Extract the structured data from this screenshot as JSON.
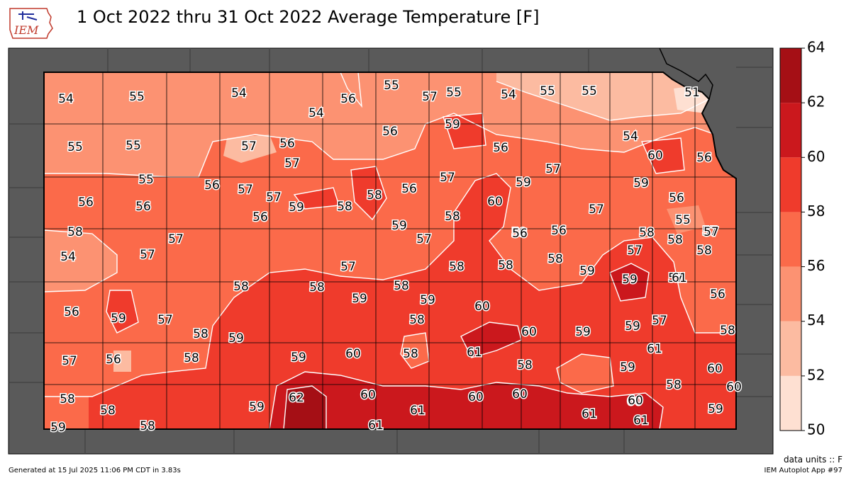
{
  "header": {
    "logo_text": "IEM",
    "title": "1 Oct 2022 thru 31 Oct 2022 Average Temperature [F]"
  },
  "legend": {
    "ticks": [
      "50",
      "52",
      "54",
      "56",
      "58",
      "60",
      "62",
      "64"
    ],
    "bins": [
      {
        "from": 50,
        "to": 52,
        "color": "#fee0d2"
      },
      {
        "from": 52,
        "to": 54,
        "color": "#fcbba1"
      },
      {
        "from": 54,
        "to": 56,
        "color": "#fc9272"
      },
      {
        "from": 56,
        "to": 58,
        "color": "#fb6a4a"
      },
      {
        "from": 58,
        "to": 60,
        "color": "#ef3b2c"
      },
      {
        "from": 60,
        "to": 62,
        "color": "#cb181d"
      },
      {
        "from": 62,
        "to": 64,
        "color": "#a50f15"
      }
    ]
  },
  "map": {
    "state": "Kansas",
    "outside_color": "#5a5a5a",
    "labels": [
      "54",
      "55",
      "54",
      "56",
      "55",
      "57",
      "55",
      "54",
      "54",
      "55",
      "55",
      "51",
      "55",
      "55",
      "57",
      "56",
      "56",
      "59",
      "56",
      "54",
      "60",
      "56",
      "57",
      "57",
      "59",
      "56",
      "57",
      "60",
      "55",
      "56",
      "56",
      "57",
      "57",
      "59",
      "58",
      "58",
      "59",
      "55",
      "57",
      "56",
      "56",
      "56",
      "57",
      "59",
      "58",
      "58",
      "57",
      "59",
      "56",
      "58",
      "58",
      "57",
      "57",
      "57",
      "58",
      "58",
      "57",
      "56",
      "58",
      "54",
      "57",
      "57",
      "58",
      "58",
      "58",
      "59",
      "61",
      "57",
      "56",
      "58",
      "58",
      "59",
      "59",
      "60",
      "59",
      "56",
      "59",
      "57",
      "58",
      "59",
      "58",
      "60",
      "59",
      "59",
      "58",
      "57",
      "56",
      "58",
      "59",
      "60",
      "58",
      "61",
      "60",
      "59",
      "61",
      "60",
      "58",
      "58",
      "59",
      "62",
      "60",
      "61",
      "60",
      "60",
      "61",
      "60",
      "58",
      "59",
      "60",
      "59",
      "58",
      "61",
      "61"
    ],
    "data_units": "data units :: F"
  },
  "footer": {
    "generated": "Generated at 15 Jul 2025 11:06 PM CDT in 3.83s",
    "app": "IEM Autoplot App #97"
  }
}
